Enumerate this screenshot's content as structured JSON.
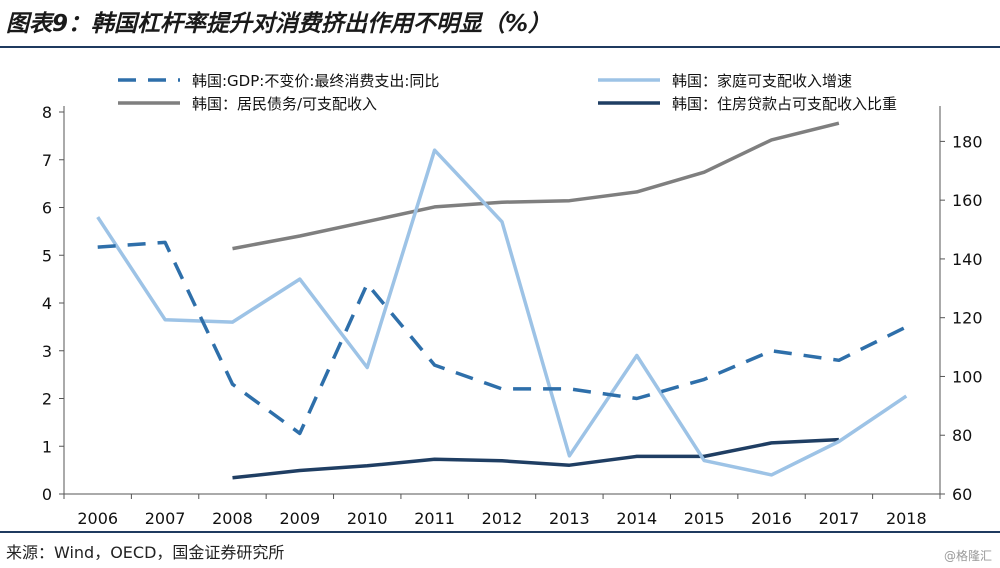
{
  "title": "图表9：韩国杠杆率提升对消费挤出作用不明显（%）",
  "source": "来源：Wind，OECD，国金证券研究所",
  "watermark": "@格隆汇",
  "chart_data": {
    "type": "line",
    "categories": [
      "2006",
      "2007",
      "2008",
      "2009",
      "2010",
      "2011",
      "2012",
      "2013",
      "2014",
      "2015",
      "2016",
      "2017",
      "2018"
    ],
    "left_axis": {
      "min": 0,
      "max": 8,
      "ticks": [
        0,
        1,
        2,
        3,
        4,
        5,
        6,
        7,
        8
      ]
    },
    "right_axis": {
      "min": 60,
      "max": 190,
      "ticks": [
        60,
        80,
        100,
        120,
        140,
        160,
        180
      ]
    },
    "legend_position": "top",
    "series": [
      {
        "name": "韩国:GDP:不变价:最终消费支出:同比",
        "axis": "left",
        "style": "dashed",
        "color": "#2e6faa",
        "values": [
          5.17,
          5.27,
          2.3,
          1.27,
          4.4,
          2.7,
          2.2,
          2.2,
          2.0,
          2.4,
          3.0,
          2.8,
          3.5
        ]
      },
      {
        "name": "韩国：家庭可支配收入增速",
        "axis": "left",
        "style": "solid",
        "color": "#9dc3e6",
        "values": [
          5.8,
          3.65,
          3.6,
          4.5,
          2.65,
          7.2,
          5.7,
          0.8,
          2.9,
          0.7,
          0.4,
          1.1,
          2.05
        ]
      },
      {
        "name": "韩国：居民债务/可支配收入",
        "axis": "right",
        "style": "solid",
        "color": "#7f7f7f",
        "values": [
          null,
          null,
          143.5,
          147.8,
          152.7,
          157.7,
          159.3,
          159.8,
          162.8,
          169.5,
          180.5,
          186.2,
          null
        ]
      },
      {
        "name": "韩国：住房贷款占可支配收入比重",
        "axis": "right",
        "style": "solid",
        "color": "#1f3e63",
        "values": [
          null,
          null,
          65.5,
          68.0,
          69.6,
          71.8,
          71.3,
          69.8,
          72.8,
          72.8,
          77.4,
          78.5,
          null
        ]
      }
    ]
  }
}
